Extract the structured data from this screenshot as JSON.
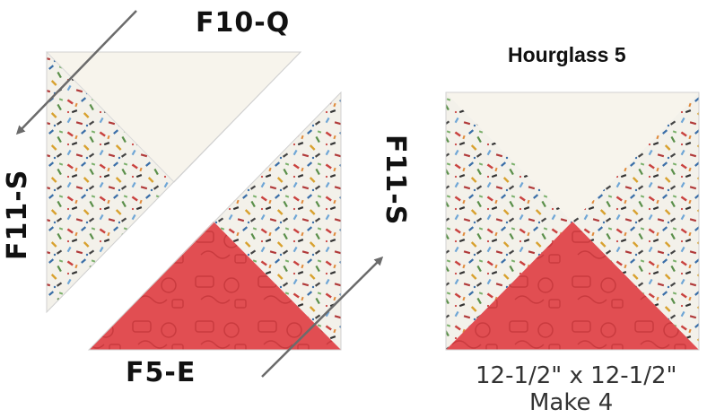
{
  "labels": {
    "fabric_top": "F10-Q",
    "fabric_left": "F11-S",
    "fabric_right": "F11-S",
    "fabric_bottom": "F5-E"
  },
  "block": {
    "title": "Hourglass 5",
    "size": "12-1/2\" x 12-1/2\"",
    "quantity": "Make 4"
  },
  "colors": {
    "cream": "#f7f4ec",
    "red": "#e14e52",
    "print_bg": "#f3f1ea",
    "arrow": "#6b6b6b",
    "outline": "#d9d9d9"
  },
  "icons": {
    "arrow_left": "arrow-down-left-icon",
    "arrow_right": "arrow-up-right-icon"
  }
}
